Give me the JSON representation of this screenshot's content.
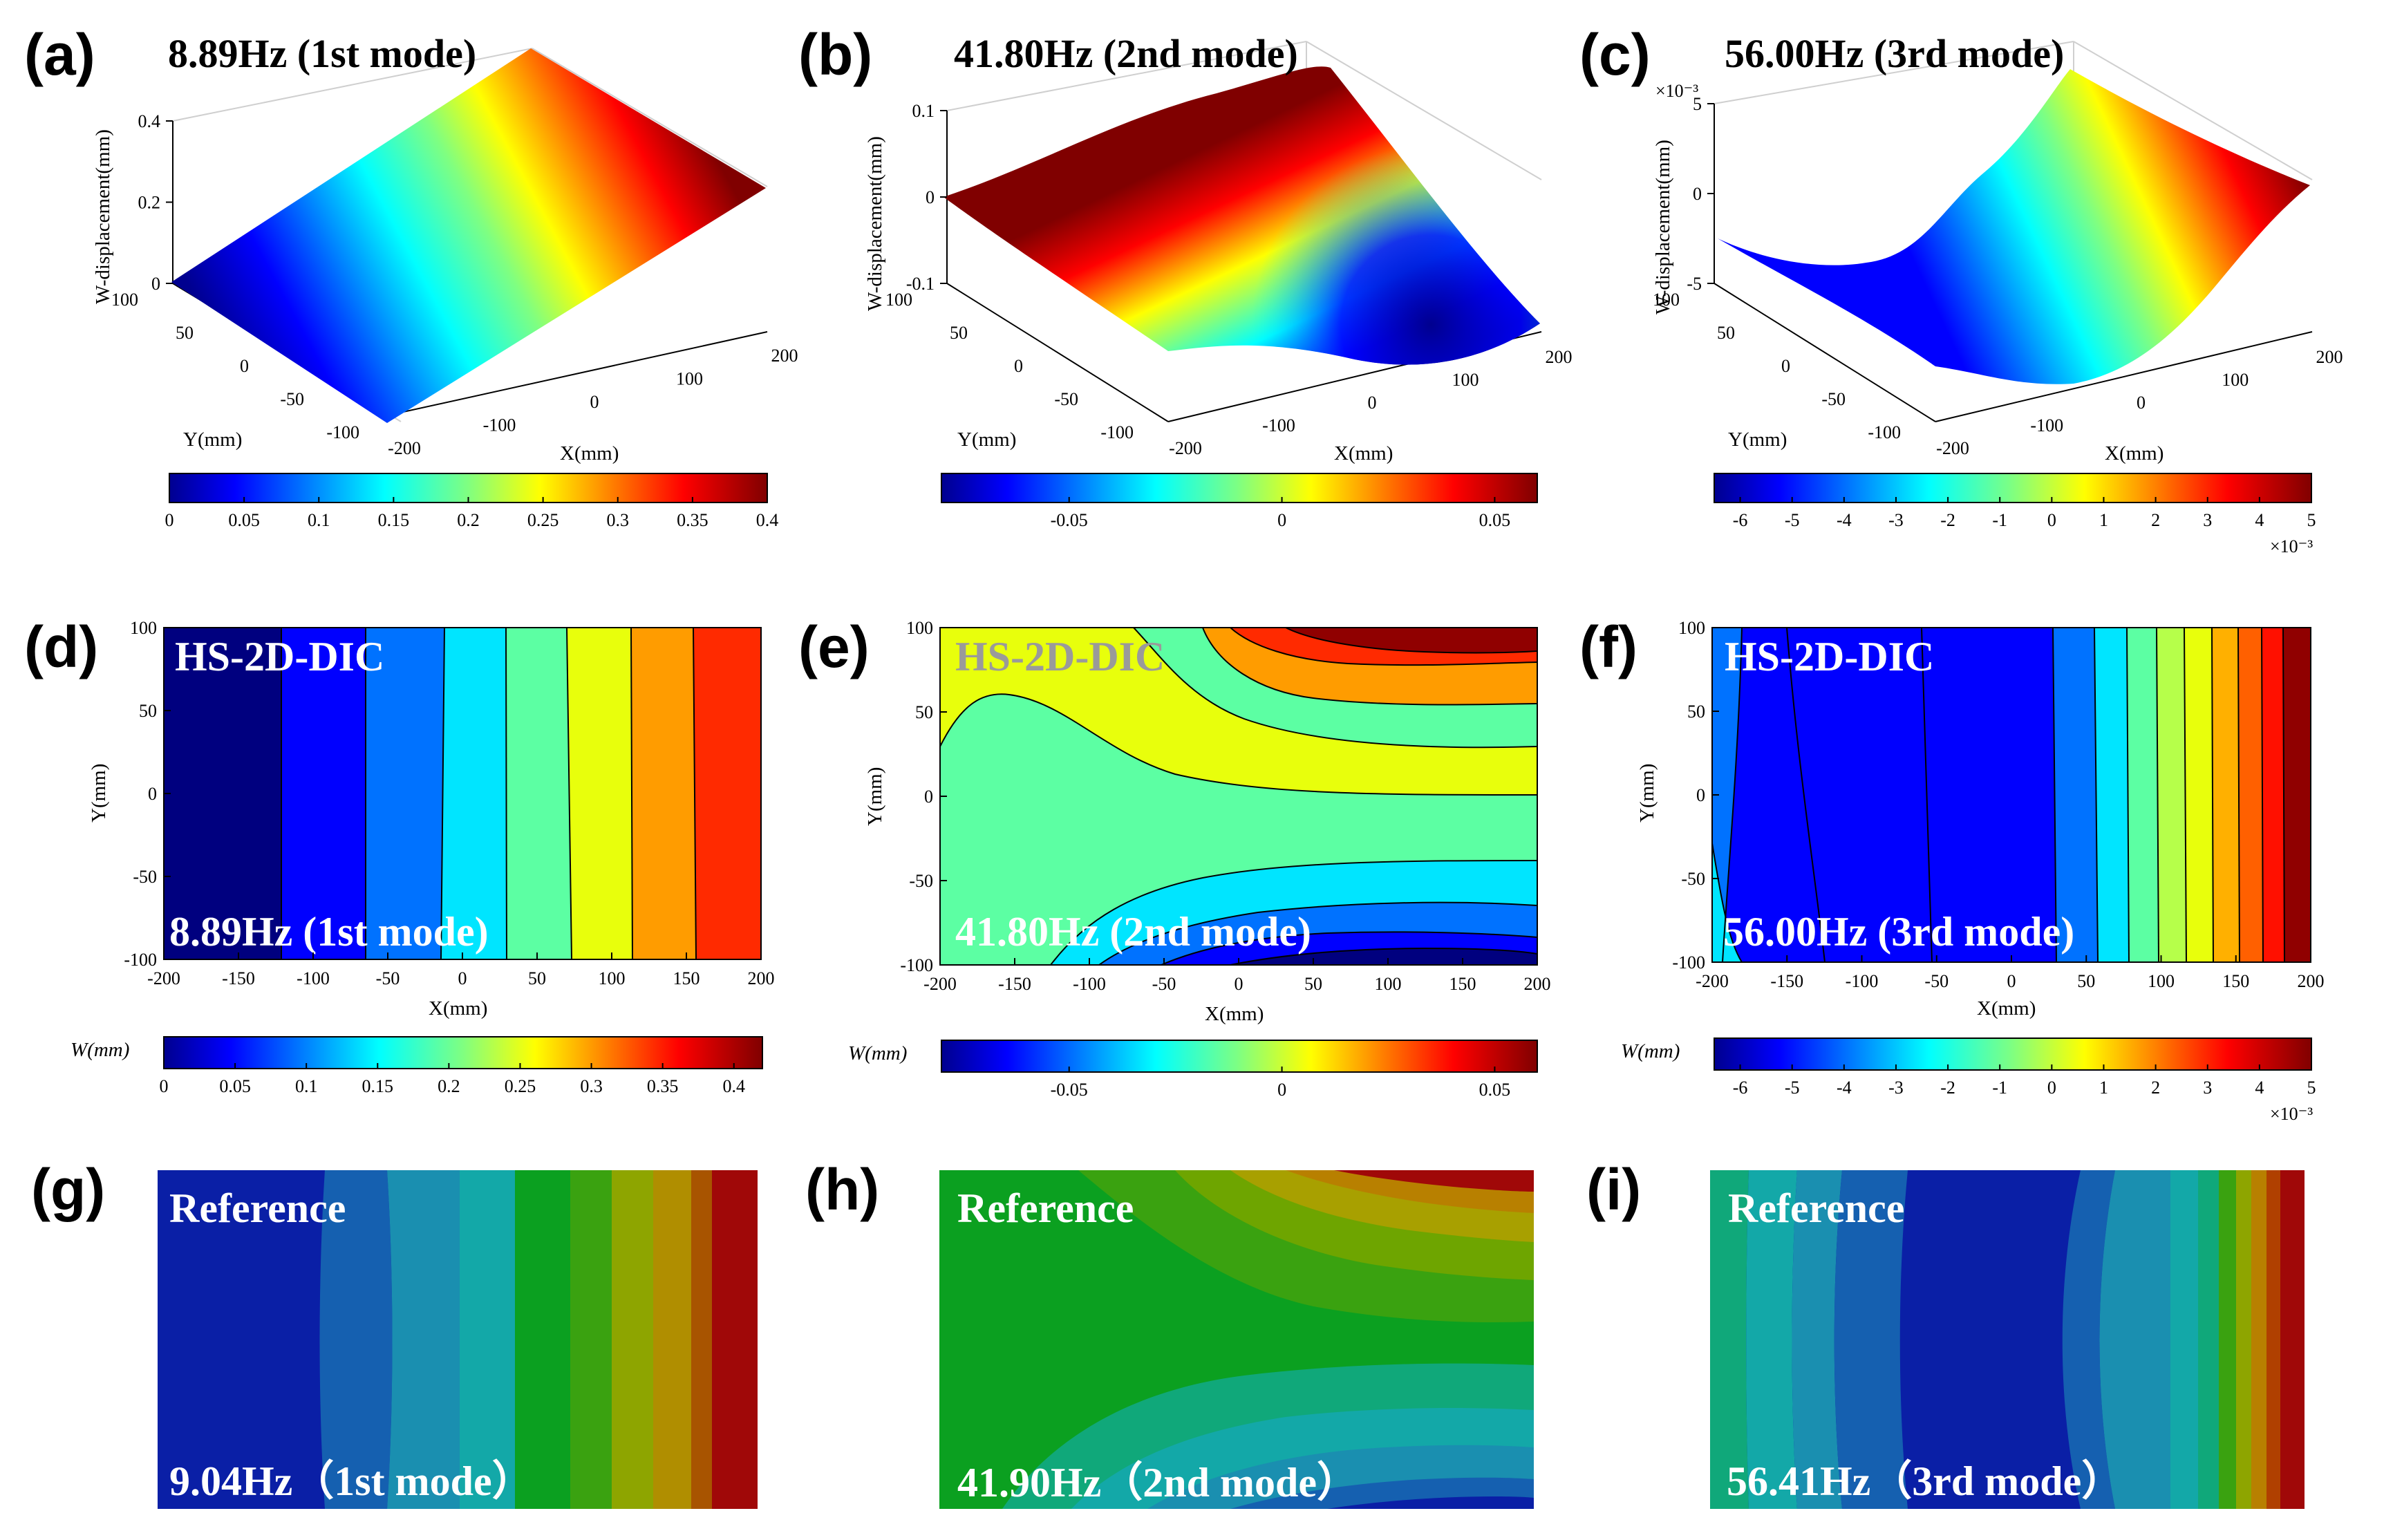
{
  "colors": {
    "jet": [
      "#00008f",
      "#0000ff",
      "#0080ff",
      "#00ffff",
      "#80ff80",
      "#ffff00",
      "#ff8000",
      "#ff0000",
      "#800000"
    ],
    "jet_contour": [
      "#00007f",
      "#0000ff",
      "#0072ff",
      "#00e5ff",
      "#5cffa3",
      "#e8ff0c",
      "#ff9c00",
      "#ff2a00",
      "#900000"
    ],
    "ref": [
      "#0a1fa6",
      "#1560b0",
      "#1a8fb0",
      "#13a8a8",
      "#10a87a",
      "#0ba020",
      "#6ea500",
      "#a8a000",
      "#b88000",
      "#b04000",
      "#a00808"
    ],
    "overlay_text": "#ffffff",
    "overlay_text_gray": "#9a9a9a"
  },
  "panels": {
    "a": {
      "label": "(a)",
      "title": "8.89Hz (1st mode)"
    },
    "b": {
      "label": "(b)",
      "title": "41.80Hz (2nd mode)"
    },
    "c": {
      "label": "(c)",
      "title": "56.00Hz (3rd mode)"
    },
    "d": {
      "label": "(d)",
      "overlay_top": "HS-2D-DIC",
      "overlay_bottom": "8.89Hz (1st mode)"
    },
    "e": {
      "label": "(e)",
      "overlay_top": "HS-2D-DIC",
      "overlay_bottom": "41.80Hz (2nd mode)"
    },
    "f": {
      "label": "(f)",
      "overlay_top": "HS-2D-DIC",
      "overlay_bottom": "56.00Hz (3rd mode)"
    },
    "g": {
      "label": "(g)",
      "overlay_top": "Reference",
      "overlay_bottom": "9.04Hz（1st mode）"
    },
    "h": {
      "label": "(h)",
      "overlay_top": "Reference",
      "overlay_bottom": "41.90Hz（2nd mode）"
    },
    "i": {
      "label": "(i)",
      "overlay_top": "Reference",
      "overlay_bottom": "56.41Hz（3rd mode）"
    }
  },
  "chart_data": [
    {
      "type": "surface3d",
      "panel": "a",
      "title": "8.89Hz (1st mode)",
      "xlabel": "X(mm)",
      "ylabel": "Y(mm)",
      "zlabel": "W-displacement(mm)",
      "xlim": [
        -200,
        200
      ],
      "ylim": [
        -100,
        100
      ],
      "zlim": [
        0,
        0.4
      ],
      "xticks": [
        "-200",
        "-100",
        "0",
        "100",
        "200"
      ],
      "yticks": [
        "-100",
        "-50",
        "0",
        "50",
        "100"
      ],
      "zticks": [
        "0",
        "0.2",
        "0.4"
      ],
      "colorbar": {
        "min": 0,
        "max": 0.4,
        "ticks": [
          "0",
          "0.05",
          "0.1",
          "0.15",
          "0.2",
          "0.25",
          "0.3",
          "0.35",
          "0.4"
        ],
        "tick_values": [
          0,
          0.05,
          0.1,
          0.15,
          0.2,
          0.25,
          0.3,
          0.35,
          0.4
        ]
      }
    },
    {
      "type": "surface3d",
      "panel": "b",
      "title": "41.80Hz (2nd mode)",
      "xlabel": "X(mm)",
      "ylabel": "Y(mm)",
      "zlabel": "W-displacement(mm)",
      "xlim": [
        -200,
        200
      ],
      "ylim": [
        -100,
        100
      ],
      "zlim": [
        -0.1,
        0.1
      ],
      "xticks": [
        "-200",
        "-100",
        "0",
        "100",
        "200"
      ],
      "yticks": [
        "-100",
        "-50",
        "0",
        "50",
        "100"
      ],
      "zticks": [
        "-0.1",
        "0",
        "0.1"
      ],
      "colorbar": {
        "min": -0.08,
        "max": 0.06,
        "ticks": [
          "-0.05",
          "0",
          "0.05"
        ],
        "tick_values": [
          -0.05,
          0,
          0.05
        ]
      }
    },
    {
      "type": "surface3d",
      "panel": "c",
      "title": "56.00Hz (3rd mode)",
      "xlabel": "X(mm)",
      "ylabel": "Y(mm)",
      "zlabel": "W-displacement(mm)",
      "xlim": [
        -200,
        200
      ],
      "ylim": [
        -100,
        100
      ],
      "zlim": [
        -5,
        5
      ],
      "z_exponent": "×10⁻³",
      "xticks": [
        "-200",
        "-100",
        "0",
        "100",
        "200"
      ],
      "yticks": [
        "-100",
        "-50",
        "0",
        "50",
        "100"
      ],
      "zticks": [
        "-5",
        "0",
        "5"
      ],
      "colorbar": {
        "min": -6.5,
        "max": 5,
        "exponent": "×10⁻³",
        "ticks": [
          "-6",
          "-5",
          "-4",
          "-3",
          "-2",
          "-1",
          "0",
          "1",
          "2",
          "3",
          "4",
          "5"
        ],
        "tick_values": [
          -6,
          -5,
          -4,
          -3,
          -2,
          -1,
          0,
          1,
          2,
          3,
          4,
          5
        ]
      }
    },
    {
      "type": "contour",
      "panel": "d",
      "xlabel": "X(mm)",
      "ylabel": "Y(mm)",
      "cblabel": "W(mm)",
      "xlim": [
        -200,
        200
      ],
      "ylim": [
        -100,
        100
      ],
      "xticks": [
        "-200",
        "-150",
        "-100",
        "-50",
        "0",
        "50",
        "100",
        "150",
        "200"
      ],
      "yticks": [
        "-100",
        "-50",
        "0",
        "50",
        "100"
      ],
      "colorbar": {
        "min": 0,
        "max": 0.42,
        "ticks": [
          "0",
          "0.05",
          "0.1",
          "0.15",
          "0.2",
          "0.25",
          "0.3",
          "0.35",
          "0.4"
        ],
        "tick_values": [
          0,
          0.05,
          0.1,
          0.15,
          0.2,
          0.25,
          0.3,
          0.35,
          0.4
        ]
      }
    },
    {
      "type": "contour",
      "panel": "e",
      "xlabel": "X(mm)",
      "ylabel": "Y(mm)",
      "cblabel": "W(mm)",
      "xlim": [
        -200,
        200
      ],
      "ylim": [
        -100,
        100
      ],
      "xticks": [
        "-200",
        "-150",
        "-100",
        "-50",
        "0",
        "50",
        "100",
        "150",
        "200"
      ],
      "yticks": [
        "-100",
        "-50",
        "0",
        "50",
        "100"
      ],
      "colorbar": {
        "min": -0.08,
        "max": 0.06,
        "ticks": [
          "-0.05",
          "0",
          "0.05"
        ],
        "tick_values": [
          -0.05,
          0,
          0.05
        ]
      }
    },
    {
      "type": "contour",
      "panel": "f",
      "xlabel": "X(mm)",
      "ylabel": "Y(mm)",
      "cblabel": "W(mm)",
      "xlim": [
        -200,
        200
      ],
      "ylim": [
        -100,
        100
      ],
      "xticks": [
        "-200",
        "-150",
        "-100",
        "-50",
        "0",
        "50",
        "100",
        "150",
        "200"
      ],
      "yticks": [
        "-100",
        "-50",
        "0",
        "50",
        "100"
      ],
      "colorbar": {
        "min": -6.5,
        "max": 5,
        "exponent": "×10⁻³",
        "ticks": [
          "-6",
          "-5",
          "-4",
          "-3",
          "-2",
          "-1",
          "0",
          "1",
          "2",
          "3",
          "4",
          "5"
        ],
        "tick_values": [
          -6,
          -5,
          -4,
          -3,
          -2,
          -1,
          0,
          1,
          2,
          3,
          4,
          5
        ]
      }
    },
    {
      "type": "contour",
      "panel": "g",
      "note": "reference FE mode shape, no axes"
    },
    {
      "type": "contour",
      "panel": "h",
      "note": "reference FE mode shape, no axes"
    },
    {
      "type": "contour",
      "panel": "i",
      "note": "reference FE mode shape, no axes"
    }
  ]
}
